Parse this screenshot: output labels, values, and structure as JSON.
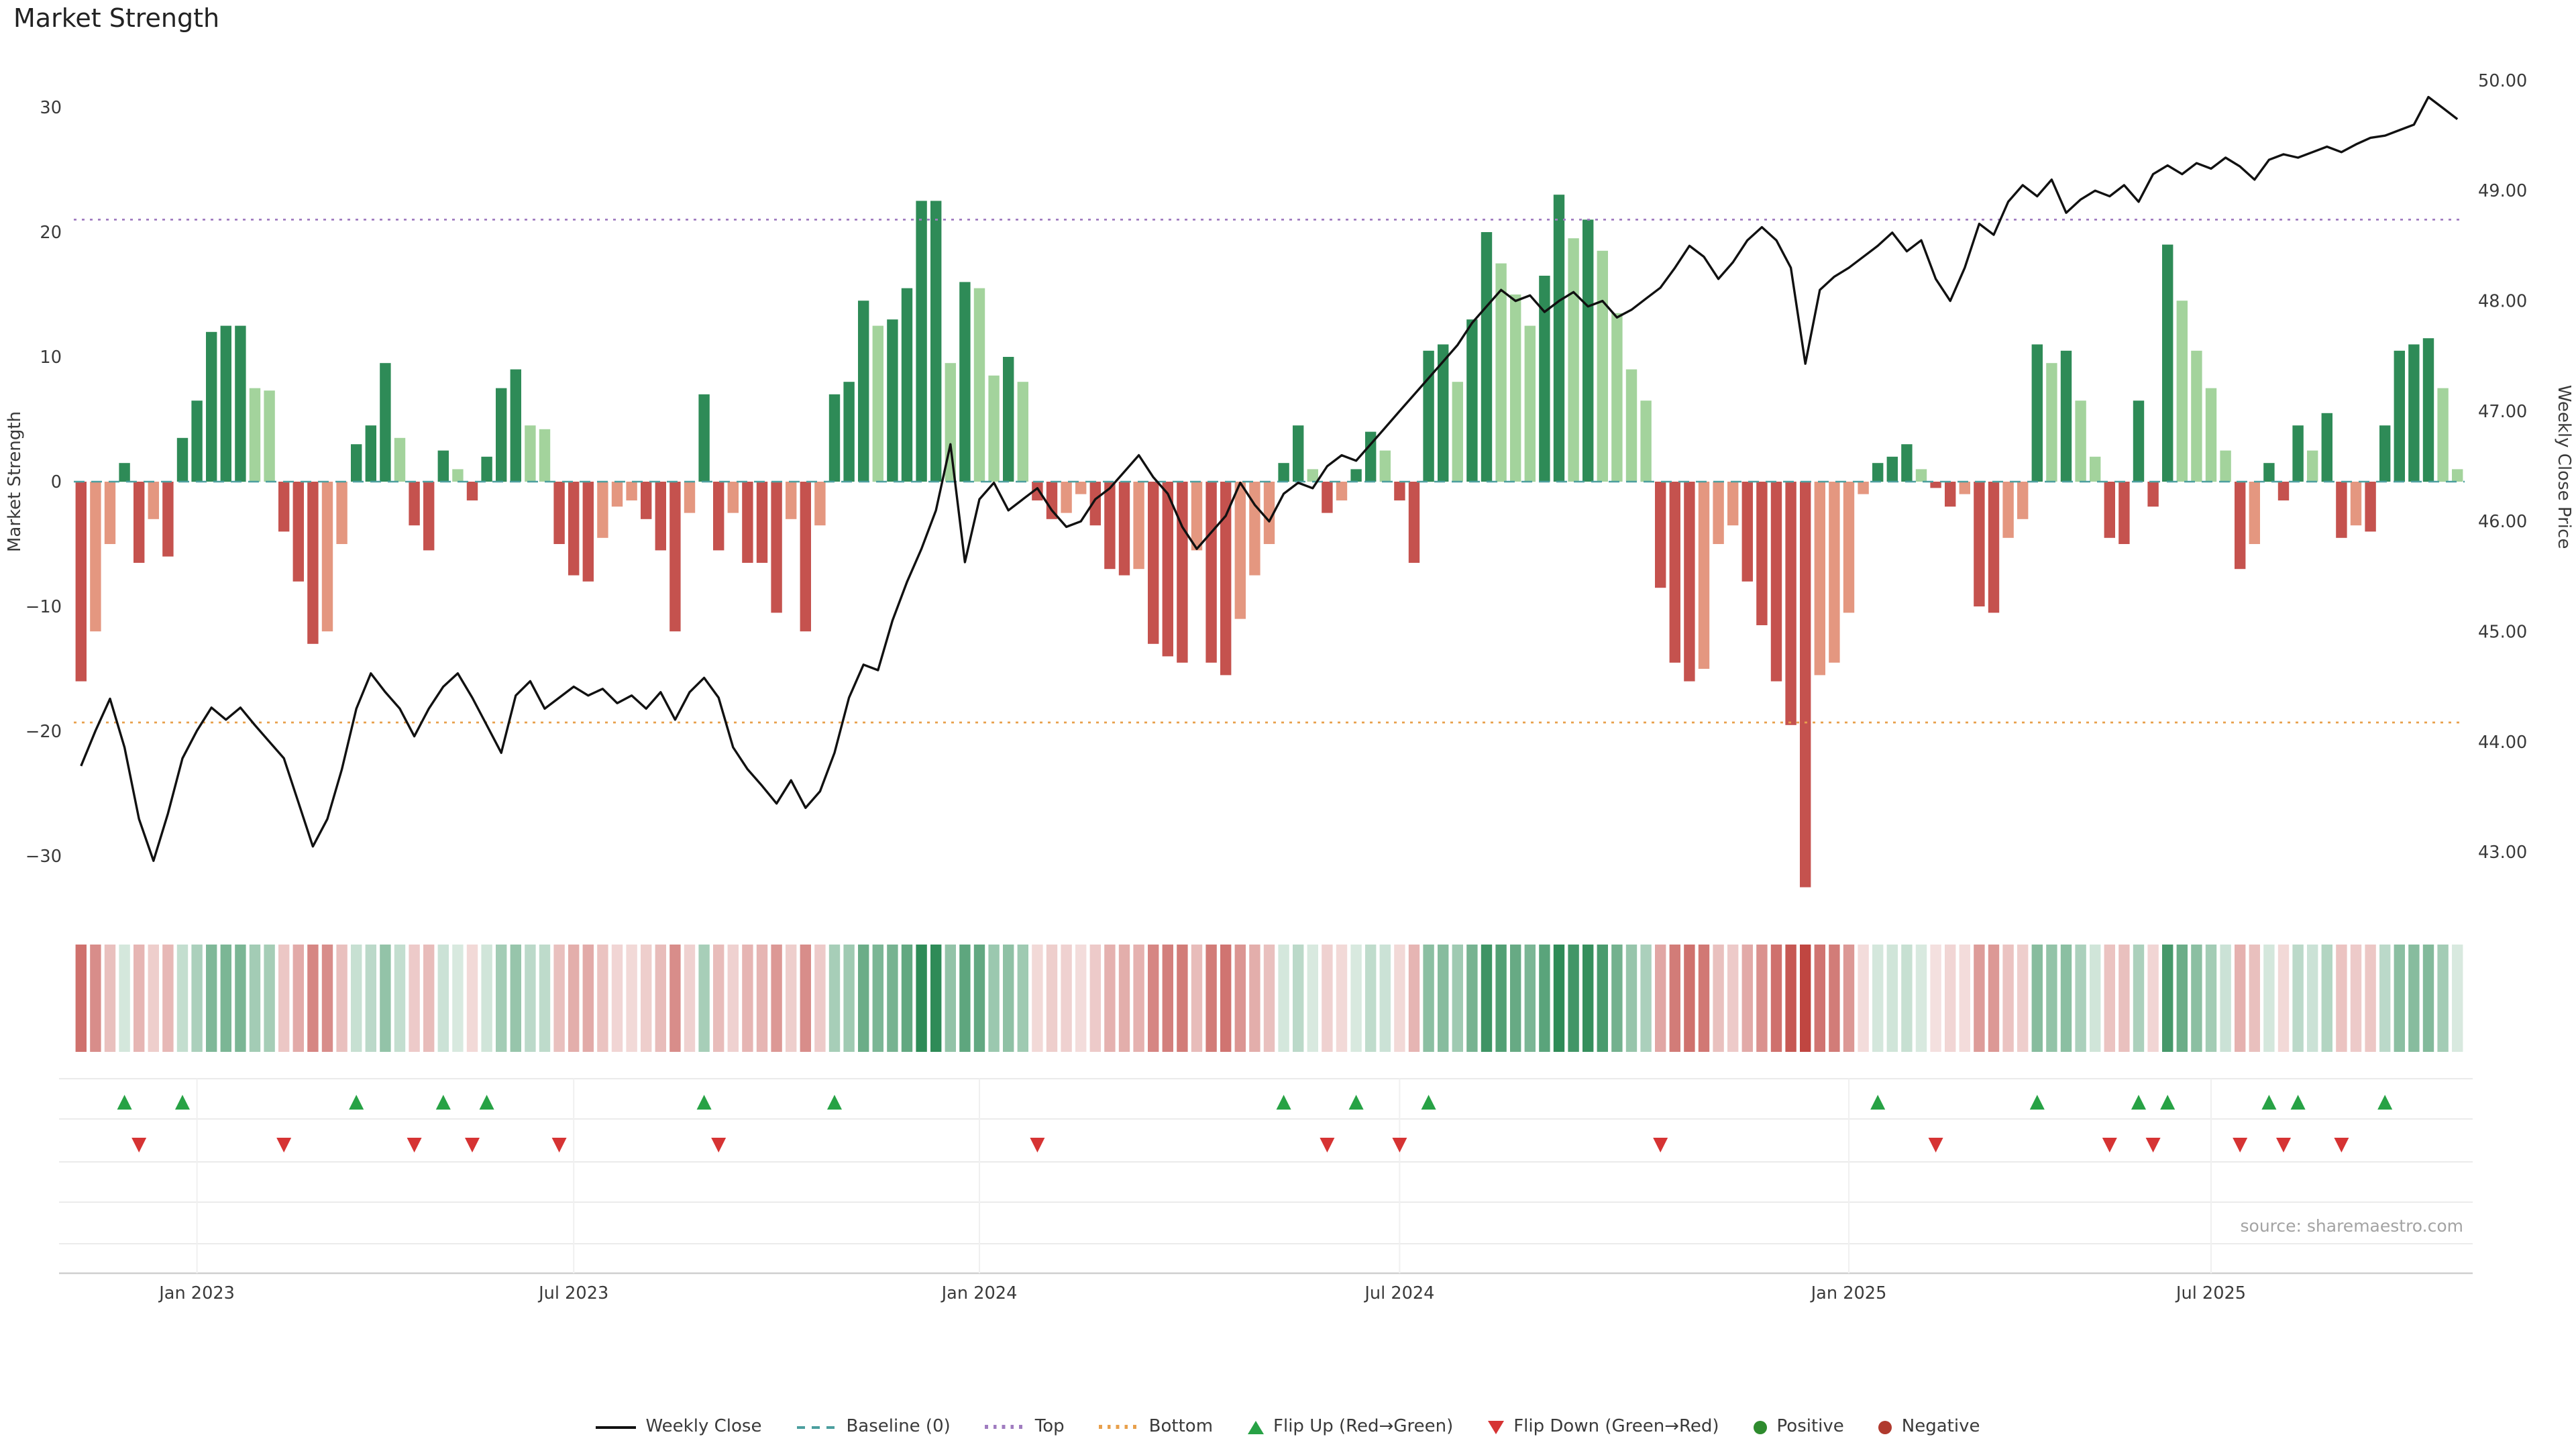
{
  "page": {
    "title": "Market Strength",
    "source": "source: sharemaestro.com"
  },
  "chart_data": {
    "type": "bar",
    "title": "Market Strength",
    "ylabel_left": "Market Strength",
    "ylabel_right": "Weekly Close Price",
    "ylim_left": [
      -35,
      34
    ],
    "ylim_right": [
      42.7,
      50.2
    ],
    "grid": false,
    "y_ticks_left": [
      30,
      20,
      10,
      0,
      -10,
      -20,
      -30
    ],
    "y_ticks_right": [
      50,
      49,
      48,
      47,
      46,
      45,
      44,
      43
    ],
    "x_ticks": [
      {
        "label": "Jan 2023",
        "week": 8
      },
      {
        "label": "Jul 2023",
        "week": 34
      },
      {
        "label": "Jan 2024",
        "week": 62
      },
      {
        "label": "Jul 2024",
        "week": 91
      },
      {
        "label": "Jan 2025",
        "week": 122
      },
      {
        "label": "Jul 2025",
        "week": 147
      }
    ],
    "guides": {
      "baseline": 0,
      "top": 21,
      "bottom": -19.3
    },
    "series": [
      {
        "name": "Market Strength",
        "type": "bar",
        "axis": "left",
        "values": [
          -16,
          -12,
          -5,
          1.5,
          -6.5,
          -3,
          -6,
          3.5,
          6.5,
          12,
          12.5,
          12.5,
          7.5,
          7.3,
          -4,
          -8,
          -13,
          -12,
          -5,
          3,
          4.5,
          9.5,
          3.5,
          -3.5,
          -5.5,
          2.5,
          1,
          -1.5,
          2,
          7.5,
          9,
          4.5,
          4.2,
          -5,
          -7.5,
          -8,
          -4.5,
          -2,
          -1.5,
          -3,
          -5.5,
          -12,
          -2.5,
          7,
          -5.5,
          -2.5,
          -6.5,
          -6.5,
          -10.5,
          -3,
          -12,
          -3.5,
          7,
          8,
          14.5,
          12.5,
          13,
          15.5,
          22.5,
          22.5,
          9.5,
          16,
          15.5,
          8.5,
          10,
          8,
          -1.5,
          -3,
          -2.5,
          -1,
          -3.5,
          -7,
          -7.5,
          -7,
          -13,
          -14,
          -14.5,
          -5.5,
          -14.5,
          -15.5,
          -11,
          -7.5,
          -5,
          1.5,
          4.5,
          1,
          -2.5,
          -1.5,
          1,
          4,
          2.5,
          -1.5,
          -6.5,
          10.5,
          11,
          8,
          13,
          20,
          17.5,
          15,
          12.5,
          16.5,
          23,
          19.5,
          21,
          18.5,
          13.5,
          9,
          6.5,
          -8.5,
          -14.5,
          -16,
          -15,
          -5,
          -3.5,
          -8,
          -11.5,
          -16,
          -19.5,
          -32.5,
          -15.5,
          -14.5,
          -10.5,
          -1,
          1.5,
          2,
          3,
          1,
          -0.5,
          -2,
          -1,
          -10,
          -10.5,
          -4.5,
          -3,
          11,
          9.5,
          10.5,
          6.5,
          2,
          -4.5,
          -5,
          6.5,
          -2,
          19,
          14.5,
          10.5,
          7.5,
          2.5,
          -7,
          -5,
          1.5,
          -1.5,
          4.5,
          2.5,
          5.5,
          -4.5,
          -3.5,
          -4,
          4.5,
          10.5,
          11,
          11.5,
          7.5,
          1
        ]
      },
      {
        "name": "Weekly Close",
        "type": "line",
        "axis": "right",
        "values": [
          43.78,
          44.1,
          44.39,
          43.95,
          43.3,
          42.92,
          43.35,
          43.85,
          44.1,
          44.31,
          44.2,
          44.31,
          44.15,
          44.0,
          43.85,
          43.45,
          43.05,
          43.3,
          43.75,
          44.3,
          44.62,
          44.45,
          44.3,
          44.05,
          44.3,
          44.5,
          44.62,
          44.4,
          44.15,
          43.9,
          44.42,
          44.55,
          44.3,
          44.4,
          44.5,
          44.42,
          44.48,
          44.35,
          44.42,
          44.3,
          44.45,
          44.2,
          44.45,
          44.58,
          44.4,
          43.95,
          43.75,
          43.6,
          43.44,
          43.65,
          43.4,
          43.55,
          43.9,
          44.4,
          44.7,
          44.65,
          45.1,
          45.45,
          45.75,
          46.1,
          46.7,
          45.63,
          46.2,
          46.35,
          46.1,
          46.2,
          46.3,
          46.1,
          45.95,
          46.0,
          46.2,
          46.3,
          46.45,
          46.6,
          46.4,
          46.25,
          45.95,
          45.75,
          45.9,
          46.05,
          46.35,
          46.15,
          46.0,
          46.25,
          46.35,
          46.3,
          46.5,
          46.6,
          46.55,
          46.7,
          46.85,
          47.0,
          47.15,
          47.3,
          47.45,
          47.6,
          47.8,
          47.95,
          48.1,
          48.0,
          48.05,
          47.9,
          48.0,
          48.08,
          47.95,
          48.0,
          47.85,
          47.92,
          48.02,
          48.12,
          48.3,
          48.5,
          48.4,
          48.2,
          48.35,
          48.55,
          48.67,
          48.55,
          48.3,
          47.43,
          48.1,
          48.22,
          48.3,
          48.4,
          48.5,
          48.62,
          48.45,
          48.55,
          48.2,
          48.0,
          48.3,
          48.7,
          48.6,
          48.9,
          49.05,
          48.95,
          49.1,
          48.8,
          48.92,
          49.0,
          48.95,
          49.05,
          48.9,
          49.15,
          49.23,
          49.15,
          49.25,
          49.2,
          49.3,
          49.22,
          49.1,
          49.28,
          49.33,
          49.3,
          49.35,
          49.4,
          49.35,
          49.42,
          49.48,
          49.5,
          49.55,
          49.6,
          49.85,
          49.75,
          49.65
        ]
      }
    ],
    "colors": {
      "bar_pos_dark": "#2e8b57",
      "bar_pos_light": "#a3d39c",
      "bar_neg_dark": "#c5524e",
      "bar_neg_light": "#e49780",
      "line": "#111111",
      "baseline": "#4c9f9f",
      "top": "#a07cc0",
      "bottom": "#e8a04c",
      "flip_up": "#27a245",
      "flip_down": "#d63333",
      "positive_dot": "#2e8b2e",
      "negative_dot": "#b03a2e"
    }
  },
  "legend": {
    "items": [
      {
        "label": "Weekly Close",
        "glyph": "line",
        "color": "#111111"
      },
      {
        "label": "Baseline (0)",
        "glyph": "dashed-line",
        "color": "#4c9f9f"
      },
      {
        "label": "Top",
        "glyph": "dotted-line",
        "color": "#a07cc0"
      },
      {
        "label": "Bottom",
        "glyph": "dotted-line",
        "color": "#e8a04c"
      },
      {
        "label": "Flip Up (Red→Green)",
        "glyph": "triangle-up",
        "color": "#27a245"
      },
      {
        "label": "Flip Down (Green→Red)",
        "glyph": "triangle-down",
        "color": "#d63333"
      },
      {
        "label": "Positive",
        "glyph": "circle",
        "color": "#2e8b2e"
      },
      {
        "label": "Negative",
        "glyph": "circle",
        "color": "#b03a2e"
      }
    ]
  }
}
